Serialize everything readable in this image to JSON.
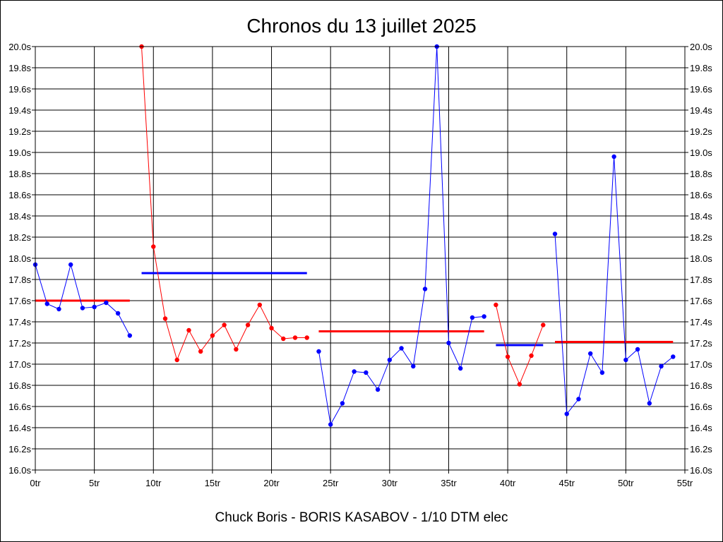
{
  "chart_data": {
    "type": "line",
    "title": "Chronos du 13 juillet 2025",
    "footer": "Chuck Boris - BORIS KASABOV - 1/10 DTM elec",
    "xlabel": "",
    "ylabel": "",
    "xlim": [
      0,
      55
    ],
    "ylim": [
      16.0,
      20.0
    ],
    "grid": true,
    "x_ticks": [
      "0tr",
      "5tr",
      "10tr",
      "15tr",
      "20tr",
      "25tr",
      "30tr",
      "35tr",
      "40tr",
      "45tr",
      "50tr",
      "55tr"
    ],
    "y_ticks": [
      "16.0s",
      "16.2s",
      "16.4s",
      "16.6s",
      "16.8s",
      "17.0s",
      "17.2s",
      "17.4s",
      "17.6s",
      "17.8s",
      "18.0s",
      "18.2s",
      "18.4s",
      "18.6s",
      "18.8s",
      "19.0s",
      "19.2s",
      "19.4s",
      "19.6s",
      "19.8s",
      "20.0s"
    ],
    "series": [
      {
        "color": "#0000ff",
        "x": [
          0,
          1,
          2,
          3,
          4,
          5,
          6,
          7,
          8
        ],
        "values": [
          17.94,
          17.57,
          17.52,
          17.94,
          17.53,
          17.54,
          17.58,
          17.48,
          17.27
        ],
        "average": {
          "x_start": 0,
          "x_end": 8,
          "value": 17.6,
          "color": "#ff0000"
        }
      },
      {
        "color": "#ff0000",
        "x": [
          9,
          10,
          11,
          12,
          13,
          14,
          15,
          16,
          17,
          18,
          19,
          20,
          21,
          22,
          23
        ],
        "values": [
          20.0,
          18.11,
          17.43,
          17.04,
          17.32,
          17.12,
          17.27,
          17.37,
          17.14,
          17.37,
          17.56,
          17.34,
          17.24,
          17.25,
          17.25
        ],
        "average": {
          "x_start": 9,
          "x_end": 23,
          "value": 17.86,
          "color": "#0000ff"
        }
      },
      {
        "color": "#0000ff",
        "x": [
          24,
          25,
          26,
          27,
          28,
          29,
          30,
          31,
          32,
          33,
          34,
          35,
          36,
          37,
          38
        ],
        "values": [
          17.12,
          16.43,
          16.63,
          16.93,
          16.92,
          16.76,
          17.04,
          17.15,
          16.98,
          17.71,
          20.0,
          17.2,
          16.96,
          17.44,
          17.45
        ],
        "average": {
          "x_start": 24,
          "x_end": 38,
          "value": 17.31,
          "color": "#ff0000"
        }
      },
      {
        "color": "#ff0000",
        "x": [
          39,
          40,
          41,
          42,
          43
        ],
        "values": [
          17.56,
          17.07,
          16.81,
          17.08,
          17.37
        ],
        "average": {
          "x_start": 39,
          "x_end": 43,
          "value": 17.18,
          "color": "#0000ff"
        }
      },
      {
        "color": "#0000ff",
        "x": [
          44,
          45,
          46,
          47,
          48,
          49,
          50,
          51,
          52,
          53,
          54
        ],
        "values": [
          18.23,
          16.53,
          16.67,
          17.1,
          16.92,
          18.96,
          17.04,
          17.14,
          16.63,
          16.98,
          17.07
        ],
        "average": {
          "x_start": 44,
          "x_end": 54,
          "value": 17.21,
          "color": "#ff0000"
        }
      }
    ]
  }
}
